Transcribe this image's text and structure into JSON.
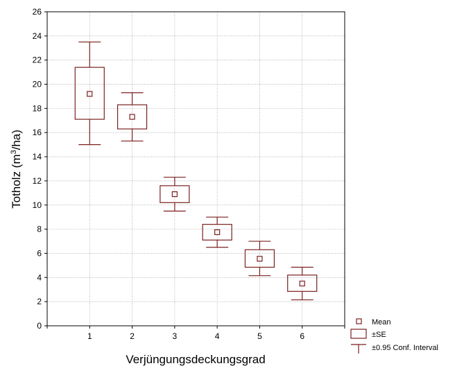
{
  "chart_data": {
    "type": "boxplot",
    "xlabel": "Verjüngungsdeckungsgrad",
    "ylabel_main": "Totholz (m",
    "ylabel_sup": "3",
    "ylabel_tail": "/ha)",
    "xlim": [
      0,
      7
    ],
    "ylim": [
      0,
      26
    ],
    "yticks": [
      0,
      2,
      4,
      6,
      8,
      10,
      12,
      14,
      16,
      18,
      20,
      22,
      24,
      26
    ],
    "xticks": [
      1,
      2,
      3,
      4,
      5,
      6
    ],
    "grid": true,
    "color": "#7a1f1f",
    "categories": [
      "1",
      "2",
      "3",
      "4",
      "5",
      "6"
    ],
    "groups": [
      {
        "x": 1,
        "mean": 19.2,
        "se_low": 17.1,
        "se_high": 21.4,
        "ci_low": 15.0,
        "ci_high": 23.5
      },
      {
        "x": 2,
        "mean": 17.3,
        "se_low": 16.3,
        "se_high": 18.3,
        "ci_low": 15.3,
        "ci_high": 19.3
      },
      {
        "x": 3,
        "mean": 10.9,
        "se_low": 10.2,
        "se_high": 11.6,
        "ci_low": 9.5,
        "ci_high": 12.3
      },
      {
        "x": 4,
        "mean": 7.75,
        "se_low": 7.1,
        "se_high": 8.4,
        "ci_low": 6.5,
        "ci_high": 9.0
      },
      {
        "x": 5,
        "mean": 5.55,
        "se_low": 4.85,
        "se_high": 6.3,
        "ci_low": 4.15,
        "ci_high": 7.0
      },
      {
        "x": 6,
        "mean": 3.5,
        "se_low": 2.85,
        "se_high": 4.2,
        "ci_low": 2.15,
        "ci_high": 4.85
      }
    ],
    "legend": {
      "position": "bottom-right",
      "mean_label": "Mean",
      "se_label": "±SE",
      "ci_label": "±0.95 Conf. Interval"
    }
  }
}
